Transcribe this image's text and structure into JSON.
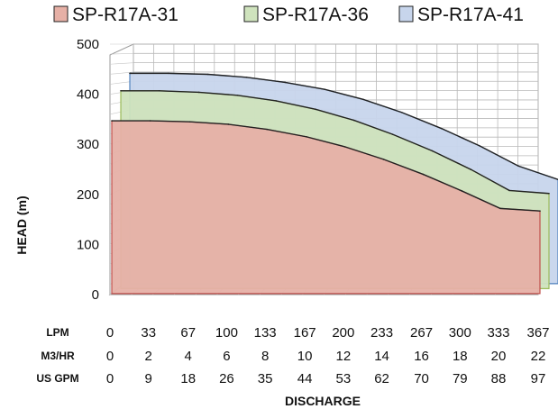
{
  "chart_data": {
    "type": "area",
    "title": "",
    "xlabel": "DISCHARGE",
    "ylabel": "HEAD (m)",
    "ylim": [
      0,
      500
    ],
    "yticks": [
      "0",
      "100",
      "200",
      "300",
      "400",
      "500"
    ],
    "grid": true,
    "legend_position": "top",
    "x_axis_rows": [
      {
        "label": "LPM",
        "ticks": [
          "0",
          "33",
          "67",
          "100",
          "133",
          "167",
          "200",
          "233",
          "267",
          "300",
          "333",
          "367"
        ]
      },
      {
        "label": "M3/HR",
        "ticks": [
          "0",
          "2",
          "4",
          "6",
          "8",
          "10",
          "12",
          "14",
          "16",
          "18",
          "20",
          "22"
        ]
      },
      {
        "label": "US GPM",
        "ticks": [
          "0",
          "9",
          "18",
          "26",
          "35",
          "44",
          "53",
          "62",
          "70",
          "79",
          "88",
          "97"
        ]
      }
    ],
    "x": [
      0,
      33,
      67,
      100,
      133,
      167,
      200,
      233,
      267,
      300,
      333,
      367
    ],
    "series": [
      {
        "name": "SP-R17A-31",
        "color": "#e6b0a6",
        "edge": "#c0504d",
        "values": [
          345,
          345,
          343,
          338,
          328,
          313,
          293,
          268,
          238,
          205,
          170,
          165
        ]
      },
      {
        "name": "SP-R17A-36",
        "color": "#cfe3bd",
        "edge": "#9bbb59",
        "values": [
          395,
          395,
          392,
          386,
          375,
          358,
          336,
          308,
          275,
          238,
          196,
          190
        ]
      },
      {
        "name": "SP-R17A-41",
        "color": "#c7d5ec",
        "edge": "#4f81bd",
        "values": [
          420,
          420,
          418,
          412,
          402,
          388,
          368,
          342,
          310,
          275,
          235,
          208
        ]
      }
    ]
  }
}
